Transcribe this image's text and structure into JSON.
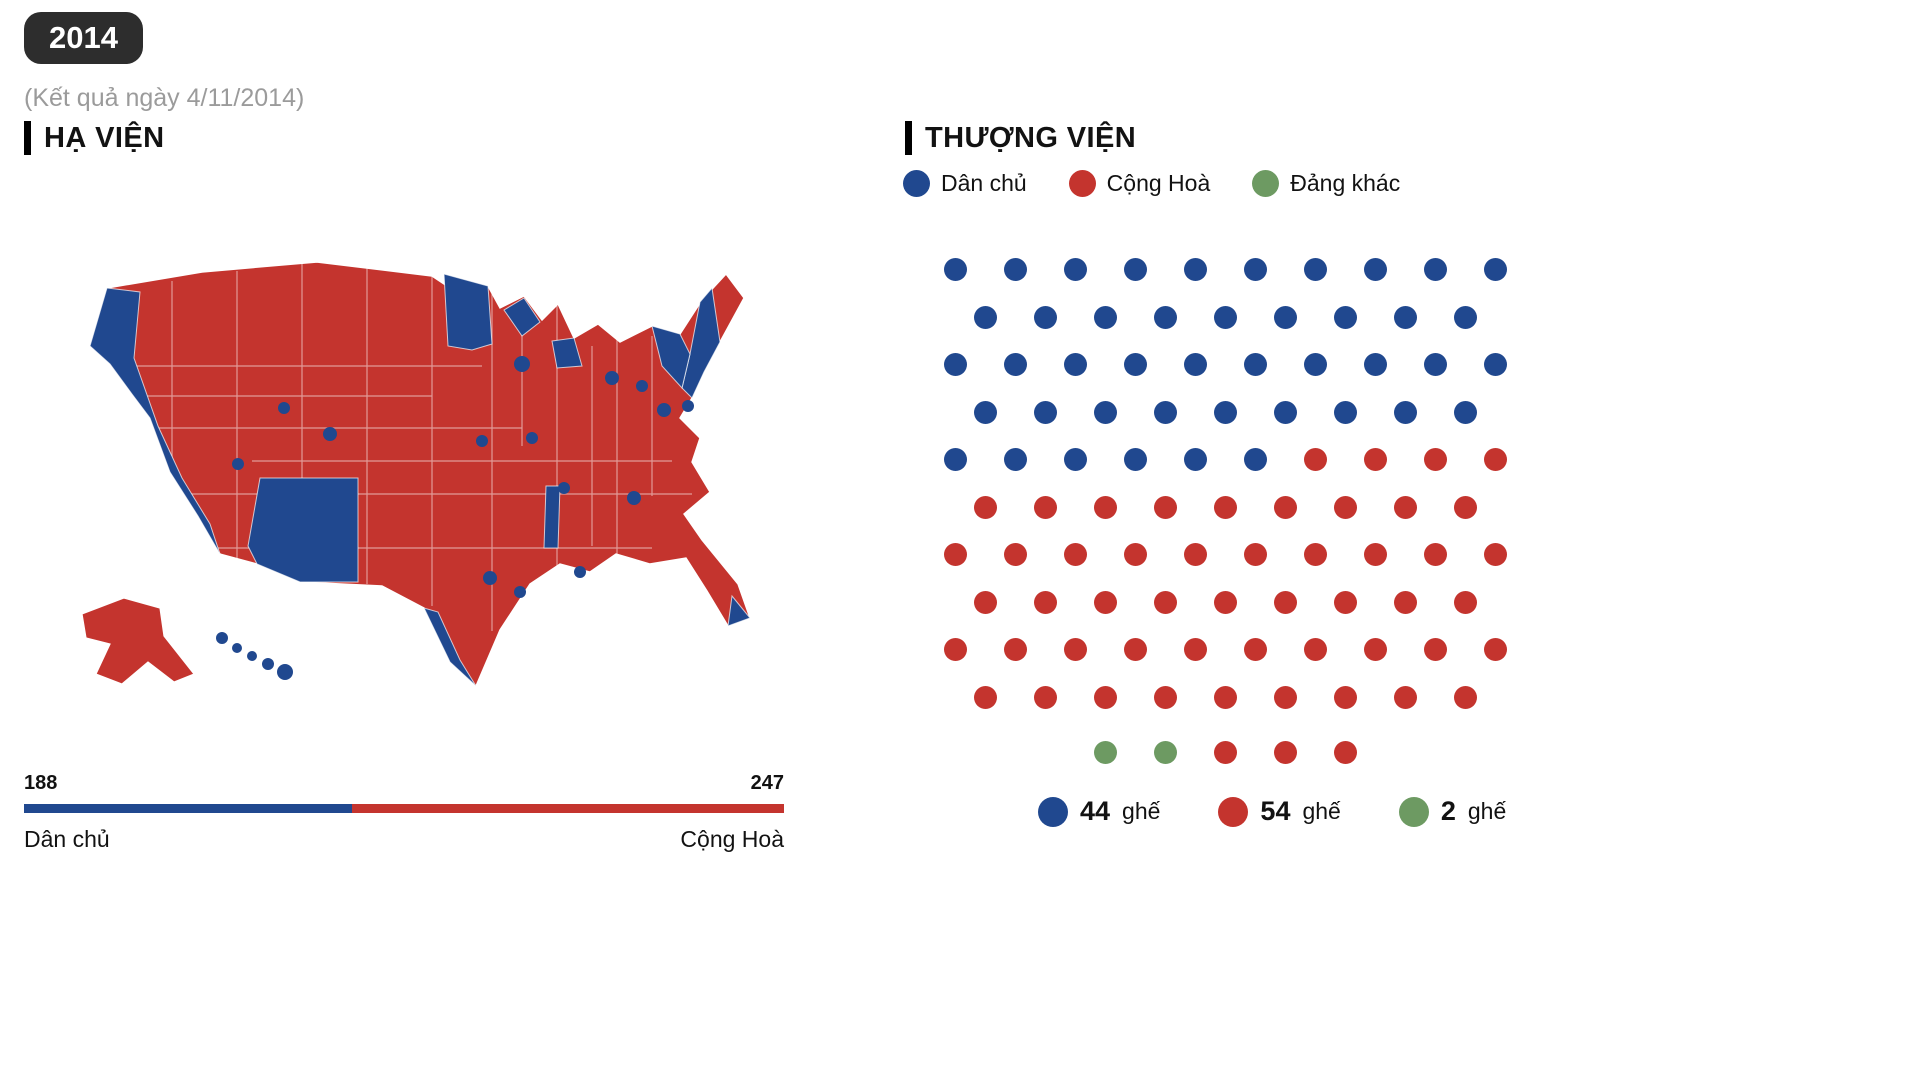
{
  "colors": {
    "dem": "#20488f",
    "rep": "#c4342e",
    "other": "#6d9a62"
  },
  "header": {
    "year": "2014",
    "subtitle": "(Kết quả ngày 4/11/2014)"
  },
  "house": {
    "title": "HẠ VIỆN",
    "dem_seats": 188,
    "rep_seats": 247,
    "dem_label": "Dân chủ",
    "rep_label": "Cộng Hoà"
  },
  "senate": {
    "title": "THƯỢNG VIỆN",
    "legend": [
      {
        "label": "Dân chủ",
        "color_key": "dem"
      },
      {
        "label": "Cộng Hoà",
        "color_key": "rep"
      },
      {
        "label": "Đảng khác",
        "color_key": "other"
      }
    ],
    "rows": [
      {
        "offset": 0,
        "seats": [
          [
            "dem",
            10
          ]
        ]
      },
      {
        "offset": 0.5,
        "seats": [
          [
            "dem",
            9
          ]
        ]
      },
      {
        "offset": 0,
        "seats": [
          [
            "dem",
            10
          ]
        ]
      },
      {
        "offset": 0.5,
        "seats": [
          [
            "dem",
            9
          ]
        ]
      },
      {
        "offset": 0,
        "seats": [
          [
            "dem",
            6
          ],
          [
            "rep",
            4
          ]
        ]
      },
      {
        "offset": 0.5,
        "seats": [
          [
            "rep",
            9
          ]
        ]
      },
      {
        "offset": 0,
        "seats": [
          [
            "rep",
            10
          ]
        ]
      },
      {
        "offset": 0.5,
        "seats": [
          [
            "rep",
            9
          ]
        ]
      },
      {
        "offset": 0,
        "seats": [
          [
            "rep",
            10
          ]
        ]
      },
      {
        "offset": 0.5,
        "seats": [
          [
            "rep",
            9
          ]
        ]
      },
      {
        "offset": 2.5,
        "seats": [
          [
            "other",
            2
          ],
          [
            "rep",
            3
          ]
        ]
      }
    ],
    "totals": [
      {
        "count": "44",
        "unit": "ghế",
        "color_key": "dem"
      },
      {
        "count": "54",
        "unit": "ghế",
        "color_key": "rep"
      },
      {
        "count": "2",
        "unit": "ghế",
        "color_key": "other"
      }
    ]
  },
  "chart_data": [
    {
      "type": "heatmap",
      "chart_kind": "choropleth-us-house-districts",
      "title": "HẠ VIỆN",
      "categories": [
        "Dân chủ",
        "Cộng Hoà"
      ],
      "values": [
        188,
        247
      ],
      "colors": [
        "#20488f",
        "#c4342e"
      ],
      "annotations": [
        "188",
        "247",
        "Dân chủ",
        "Cộng Hoà"
      ],
      "legend_position": "bottom"
    },
    {
      "type": "scatter",
      "chart_kind": "senate-seat-dot-grid",
      "title": "THƯỢNG VIỆN",
      "categories": [
        "Dân chủ",
        "Cộng Hoà",
        "Đảng khác"
      ],
      "values": [
        44,
        54,
        2
      ],
      "colors": [
        "#20488f",
        "#c4342e",
        "#6d9a62"
      ],
      "rows_of_dots": [
        10,
        9,
        10,
        9,
        10,
        9,
        10,
        9,
        10,
        9,
        5
      ],
      "legend_position": "top-and-bottom"
    }
  ]
}
